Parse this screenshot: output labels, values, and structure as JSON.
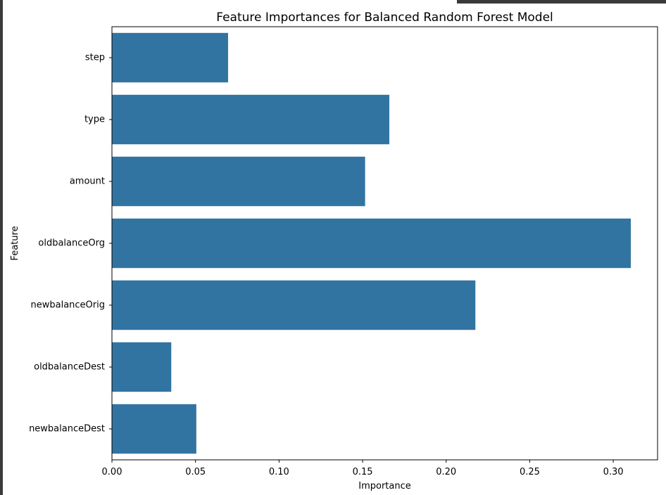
{
  "chart_data": {
    "type": "bar",
    "orientation": "horizontal",
    "title": "Feature Importances for Balanced Random Forest Model",
    "xlabel": "Importance",
    "ylabel": "Feature",
    "categories": [
      "step",
      "type",
      "amount",
      "oldbalanceOrg",
      "newbalanceOrig",
      "oldbalanceDest",
      "newbalanceDest"
    ],
    "values": [
      0.0695,
      0.166,
      0.1515,
      0.3105,
      0.2175,
      0.0355,
      0.0505
    ],
    "xlim": [
      0,
      0.3265
    ],
    "xticks": [
      0.0,
      0.05,
      0.1,
      0.15,
      0.2,
      0.25,
      0.3
    ],
    "xtick_labels": [
      "0.00",
      "0.05",
      "0.10",
      "0.15",
      "0.20",
      "0.25",
      "0.30"
    ],
    "grid": false,
    "bar_color": "#3274a1"
  }
}
